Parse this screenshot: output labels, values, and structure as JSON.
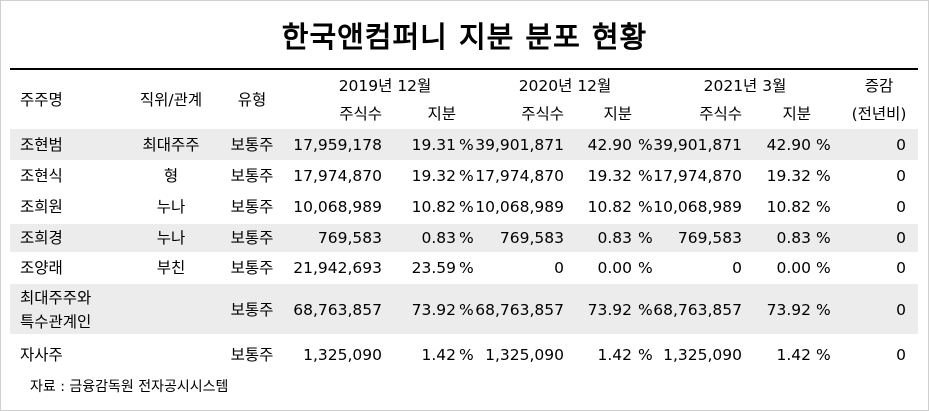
{
  "title": "한국앤컴퍼니 지분 분포 현황",
  "headers": {
    "holder": "주주명",
    "relation": "직위/관계",
    "type": "유형",
    "period1": "2019년 12월",
    "period2": "2020년 12월",
    "period3": "2021년 3월",
    "change_top": "증감",
    "change_bottom": "(전년비)",
    "shares": "주식수",
    "stake": "지분"
  },
  "percent_sign": "%",
  "rows": [
    {
      "holder": "조현범",
      "relation": "최대주주",
      "type": "보통주",
      "s1": "17,959,178",
      "p1": "19.31",
      "s2": "39,901,871",
      "p2": "42.90",
      "s3": "39,901,871",
      "p3": "42.90",
      "change": "0"
    },
    {
      "holder": "조현식",
      "relation": "형",
      "type": "보통주",
      "s1": "17,974,870",
      "p1": "19.32",
      "s2": "17,974,870",
      "p2": "19.32",
      "s3": "17,974,870",
      "p3": "19.32",
      "change": "0"
    },
    {
      "holder": "조희원",
      "relation": "누나",
      "type": "보통주",
      "s1": "10,068,989",
      "p1": "10.82",
      "s2": "10,068,989",
      "p2": "10.82",
      "s3": "10,068,989",
      "p3": "10.82",
      "change": "0"
    },
    {
      "holder": "조희경",
      "relation": "누나",
      "type": "보통주",
      "s1": "769,583",
      "p1": "0.83",
      "s2": "769,583",
      "p2": "0.83",
      "s3": "769,583",
      "p3": "0.83",
      "change": "0"
    },
    {
      "holder": "조양래",
      "relation": "부친",
      "type": "보통주",
      "s1": "21,942,693",
      "p1": "23.59",
      "s2": "0",
      "p2": "0.00",
      "s3": "0",
      "p3": "0.00",
      "change": "0"
    },
    {
      "holder": "최대주주와",
      "holder2": "특수관계인",
      "relation": "",
      "type": "보통주",
      "s1": "68,763,857",
      "p1": "73.92",
      "s2": "68,763,857",
      "p2": "73.92",
      "s3": "68,763,857",
      "p3": "73.92",
      "change": "0"
    },
    {
      "holder": "자사주",
      "relation": "",
      "type": "보통주",
      "s1": "1,325,090",
      "p1": "1.42",
      "s2": "1,325,090",
      "p2": "1.42",
      "s3": "1,325,090",
      "p3": "1.42",
      "change": "0"
    }
  ],
  "source": "자료 : 금융감독원 전자공시시스템"
}
